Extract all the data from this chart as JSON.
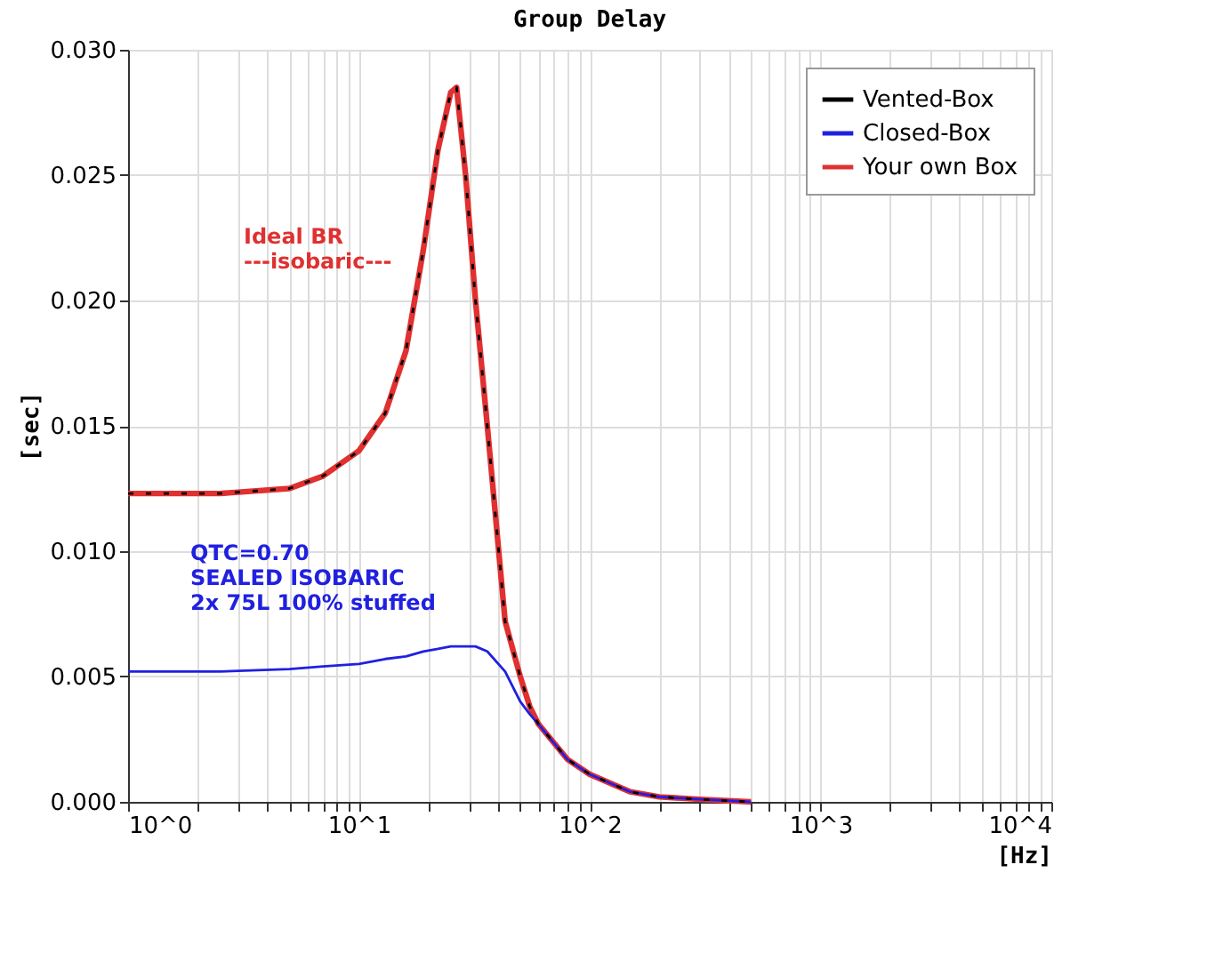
{
  "chart_data": {
    "type": "line",
    "title": "Group Delay",
    "xlabel": "[Hz]",
    "ylabel": "[sec]",
    "log": "x",
    "grid": true,
    "legend": "top right",
    "marker": "none",
    "line_style": "solid",
    "xlim": [
      1,
      10000
    ],
    "ylim": [
      0,
      0.03
    ],
    "xticks": [
      {
        "value": 1,
        "label": "10^0"
      },
      {
        "value": 2,
        "label": null
      },
      {
        "value": 3,
        "label": null
      },
      {
        "value": 4,
        "label": null
      },
      {
        "value": 5,
        "label": null
      },
      {
        "value": 6,
        "label": null
      },
      {
        "value": 7,
        "label": null
      },
      {
        "value": 8,
        "label": null
      },
      {
        "value": 9,
        "label": null
      },
      {
        "value": 10,
        "label": "10^1"
      },
      {
        "value": 20,
        "label": null
      },
      {
        "value": 30,
        "label": null
      },
      {
        "value": 40,
        "label": null
      },
      {
        "value": 50,
        "label": null
      },
      {
        "value": 60,
        "label": null
      },
      {
        "value": 70,
        "label": null
      },
      {
        "value": 80,
        "label": null
      },
      {
        "value": 90,
        "label": null
      },
      {
        "value": 100,
        "label": "10^2"
      },
      {
        "value": 200,
        "label": null
      },
      {
        "value": 300,
        "label": null
      },
      {
        "value": 400,
        "label": null
      },
      {
        "value": 500,
        "label": null
      },
      {
        "value": 600,
        "label": null
      },
      {
        "value": 700,
        "label": null
      },
      {
        "value": 800,
        "label": null
      },
      {
        "value": 900,
        "label": null
      },
      {
        "value": 1000,
        "label": "10^3"
      },
      {
        "value": 2000,
        "label": null
      },
      {
        "value": 3000,
        "label": null
      },
      {
        "value": 4000,
        "label": null
      },
      {
        "value": 5000,
        "label": null
      },
      {
        "value": 6000,
        "label": null
      },
      {
        "value": 7000,
        "label": null
      },
      {
        "value": 8000,
        "label": null
      },
      {
        "value": 9000,
        "label": null
      },
      {
        "value": 10000,
        "label": "10^4"
      }
    ],
    "yticks": [
      {
        "value": 0,
        "label": "0.000"
      },
      {
        "value": 0.005,
        "label": "0.005"
      },
      {
        "value": 0.01,
        "label": "0.010"
      },
      {
        "value": 0.015,
        "label": "0.015"
      },
      {
        "value": 0.02,
        "label": "0.020"
      },
      {
        "value": 0.025,
        "label": "0.025"
      },
      {
        "value": 0.03,
        "label": "0.030"
      }
    ],
    "annotations": [
      "Ideal BR\n---isobaric---",
      "QTC=0.70\nSEALED ISOBARIC\n2x 75L 100% stuffed"
    ],
    "x": [
      1,
      2.5,
      5,
      7,
      10,
      13,
      16,
      19,
      22,
      25,
      26.5,
      29,
      32,
      36,
      43,
      50,
      55,
      60,
      80,
      100,
      150,
      200,
      300,
      500
    ],
    "series": [
      {
        "name": "Vented-Box",
        "color": "#000000",
        "line_style": "dashed",
        "values": [
          0.0123,
          0.0123,
          0.0125,
          0.013,
          0.014,
          0.0155,
          0.018,
          0.022,
          0.026,
          0.0283,
          0.0285,
          0.025,
          0.02,
          0.015,
          0.0072,
          0.005,
          0.0038,
          0.0031,
          0.0017,
          0.0011,
          0.0004,
          0.0002,
          0.0001,
          0
        ]
      },
      {
        "name": "Closed-Box",
        "color": "#2020e0",
        "values": [
          0.0052,
          0.0052,
          0.0053,
          0.0054,
          0.0055,
          0.0057,
          0.0058,
          0.006,
          0.0061,
          0.0062,
          0.0062,
          0.0062,
          0.0062,
          0.006,
          0.0052,
          0.004,
          0.0035,
          0.0031,
          0.0017,
          0.0011,
          0.0004,
          0.0002,
          0.0001,
          0
        ]
      },
      {
        "name": "Your own Box",
        "color": "#e03030",
        "values": [
          0.0123,
          0.0123,
          0.0125,
          0.013,
          0.014,
          0.0155,
          0.018,
          0.022,
          0.026,
          0.0283,
          0.0285,
          0.025,
          0.02,
          0.015,
          0.0072,
          0.005,
          0.0038,
          0.0031,
          0.0017,
          0.0011,
          0.0004,
          0.0002,
          0.0001,
          0
        ]
      }
    ]
  }
}
